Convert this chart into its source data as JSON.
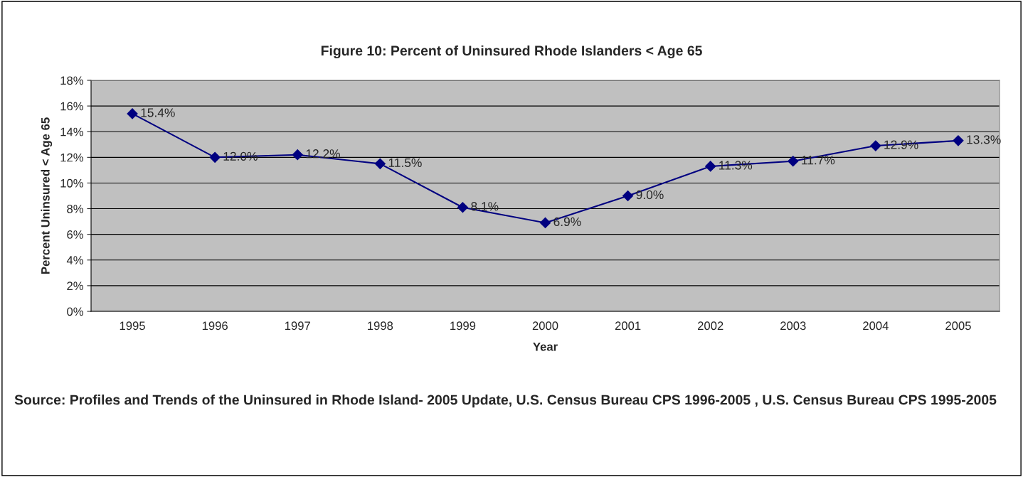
{
  "chart_data": {
    "type": "line",
    "title": "Figure 10: Percent of Uninsured Rhode Islanders < Age 65",
    "xlabel": "Year",
    "ylabel": "Percent Uninsured < Age 65",
    "categories": [
      "1995",
      "1996",
      "1997",
      "1998",
      "1999",
      "2000",
      "2001",
      "2002",
      "2003",
      "2004",
      "2005"
    ],
    "series": [
      {
        "color": "#000080",
        "values": [
          15.4,
          12.0,
          12.2,
          11.5,
          8.1,
          6.9,
          9.0,
          11.3,
          11.7,
          12.9,
          13.3
        ],
        "value_labels": [
          "15.4%",
          "12.0%",
          "12.2%",
          "11.5%",
          "8.1%",
          "6.9%",
          "9.0%",
          "11.3%",
          "11.7%",
          "12.9%",
          "13.3%"
        ]
      }
    ],
    "ylim": [
      0,
      18
    ],
    "yticks": [
      {
        "value": 0,
        "label": "0%"
      },
      {
        "value": 2,
        "label": "2%"
      },
      {
        "value": 4,
        "label": "4%"
      },
      {
        "value": 6,
        "label": "6%"
      },
      {
        "value": 8,
        "label": "8%"
      },
      {
        "value": 10,
        "label": "10%"
      },
      {
        "value": 12,
        "label": "12%"
      },
      {
        "value": 14,
        "label": "14%"
      },
      {
        "value": 16,
        "label": "16%"
      },
      {
        "value": 18,
        "label": "18%"
      }
    ],
    "grid": "y",
    "marker": "diamond",
    "line_style": "solid",
    "annotations": [
      "Source: Profiles and Trends of the Uninsured in Rhode Island- 2005 Update, U.S. Census Bureau CPS 1996-2005 , U.S. Census Bureau CPS 1995-2005"
    ]
  }
}
